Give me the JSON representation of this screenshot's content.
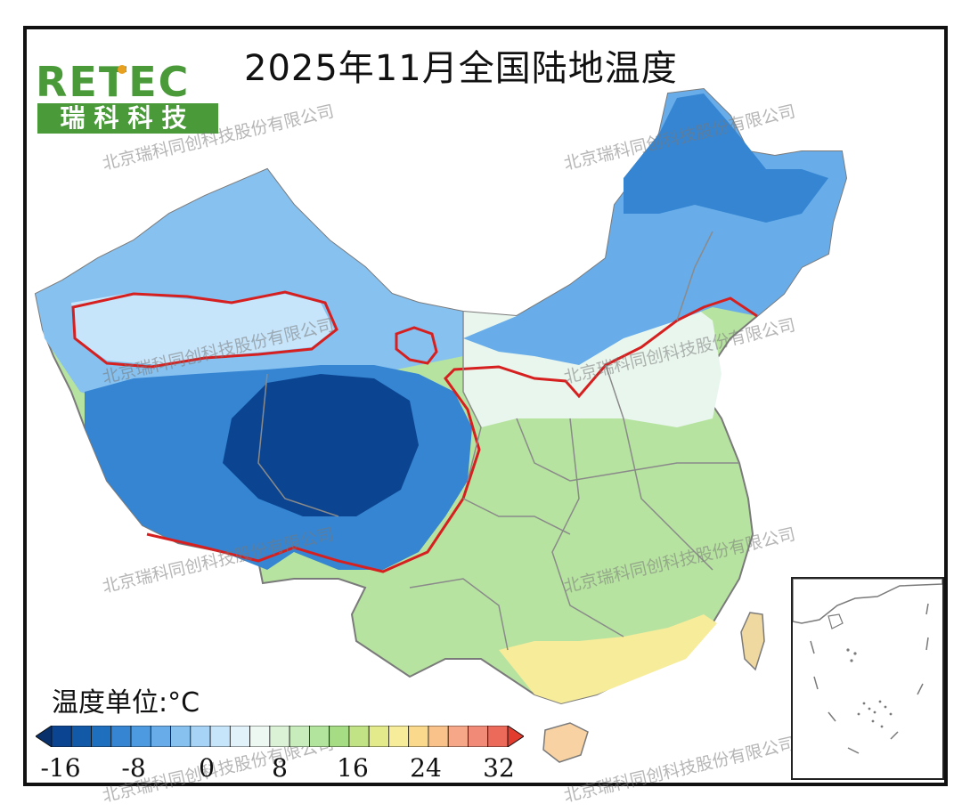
{
  "title": "2025年11月全国陆地温度",
  "logo": {
    "brand": "RE TEC",
    "name": "瑞科科技"
  },
  "watermark": "北京瑞科同创科技股份有限公司",
  "legend": {
    "unit_label": "温度单位:°C",
    "ticks": [
      "-16",
      "-8",
      "0",
      "8",
      "16",
      "24",
      "32"
    ],
    "colors": [
      "#08306b",
      "#0b4591",
      "#1259a8",
      "#1f6fbf",
      "#3585d2",
      "#4d9ae0",
      "#68ade9",
      "#86c1f0",
      "#a6d3f6",
      "#c6e4fa",
      "#e1f2fb",
      "#eef8f2",
      "#dcf2d7",
      "#c8ecbb",
      "#b3e49d",
      "#a6dc84",
      "#c2e286",
      "#e2ea8c",
      "#f6ec9a",
      "#fbd98c",
      "#f8c28a",
      "#f6a788",
      "#f28a78",
      "#ec6a5a",
      "#e23c2e"
    ]
  },
  "map_colors": {
    "very_cold": "#0b4591",
    "cold": "#3585d2",
    "cool": "#86c1f0",
    "chilly": "#c6e4fa",
    "mild": "#e9f6ee",
    "warm": "#c8ecbb",
    "warmer": "#b3e49d",
    "hot": "#f6ec9a",
    "hottest": "#f8d2a2",
    "isotherm": "#d62020",
    "border": "#7a7a7a"
  }
}
